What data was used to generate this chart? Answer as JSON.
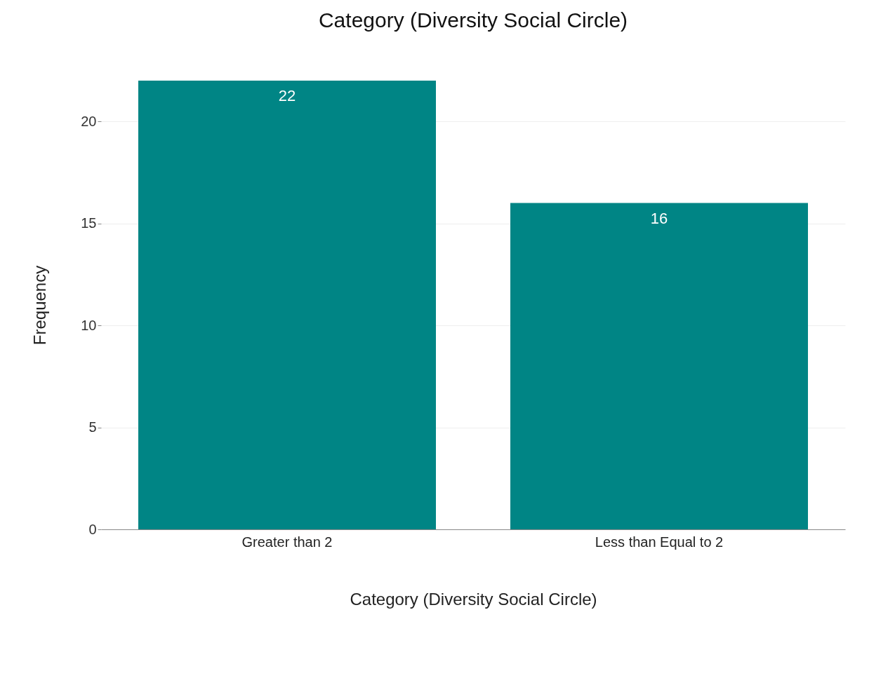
{
  "chart_data": {
    "type": "bar",
    "title": "Category (Diversity Social Circle)",
    "xlabel": "Category (Diversity Social Circle)",
    "ylabel": "Frequency",
    "categories": [
      "Greater than 2",
      "Less than Equal to 2"
    ],
    "values": [
      22,
      16
    ],
    "color": "#008585",
    "ylim": [
      0,
      22
    ],
    "yticks": [
      0,
      5,
      10,
      15,
      20
    ],
    "grid": "y",
    "data_labels": true
  }
}
